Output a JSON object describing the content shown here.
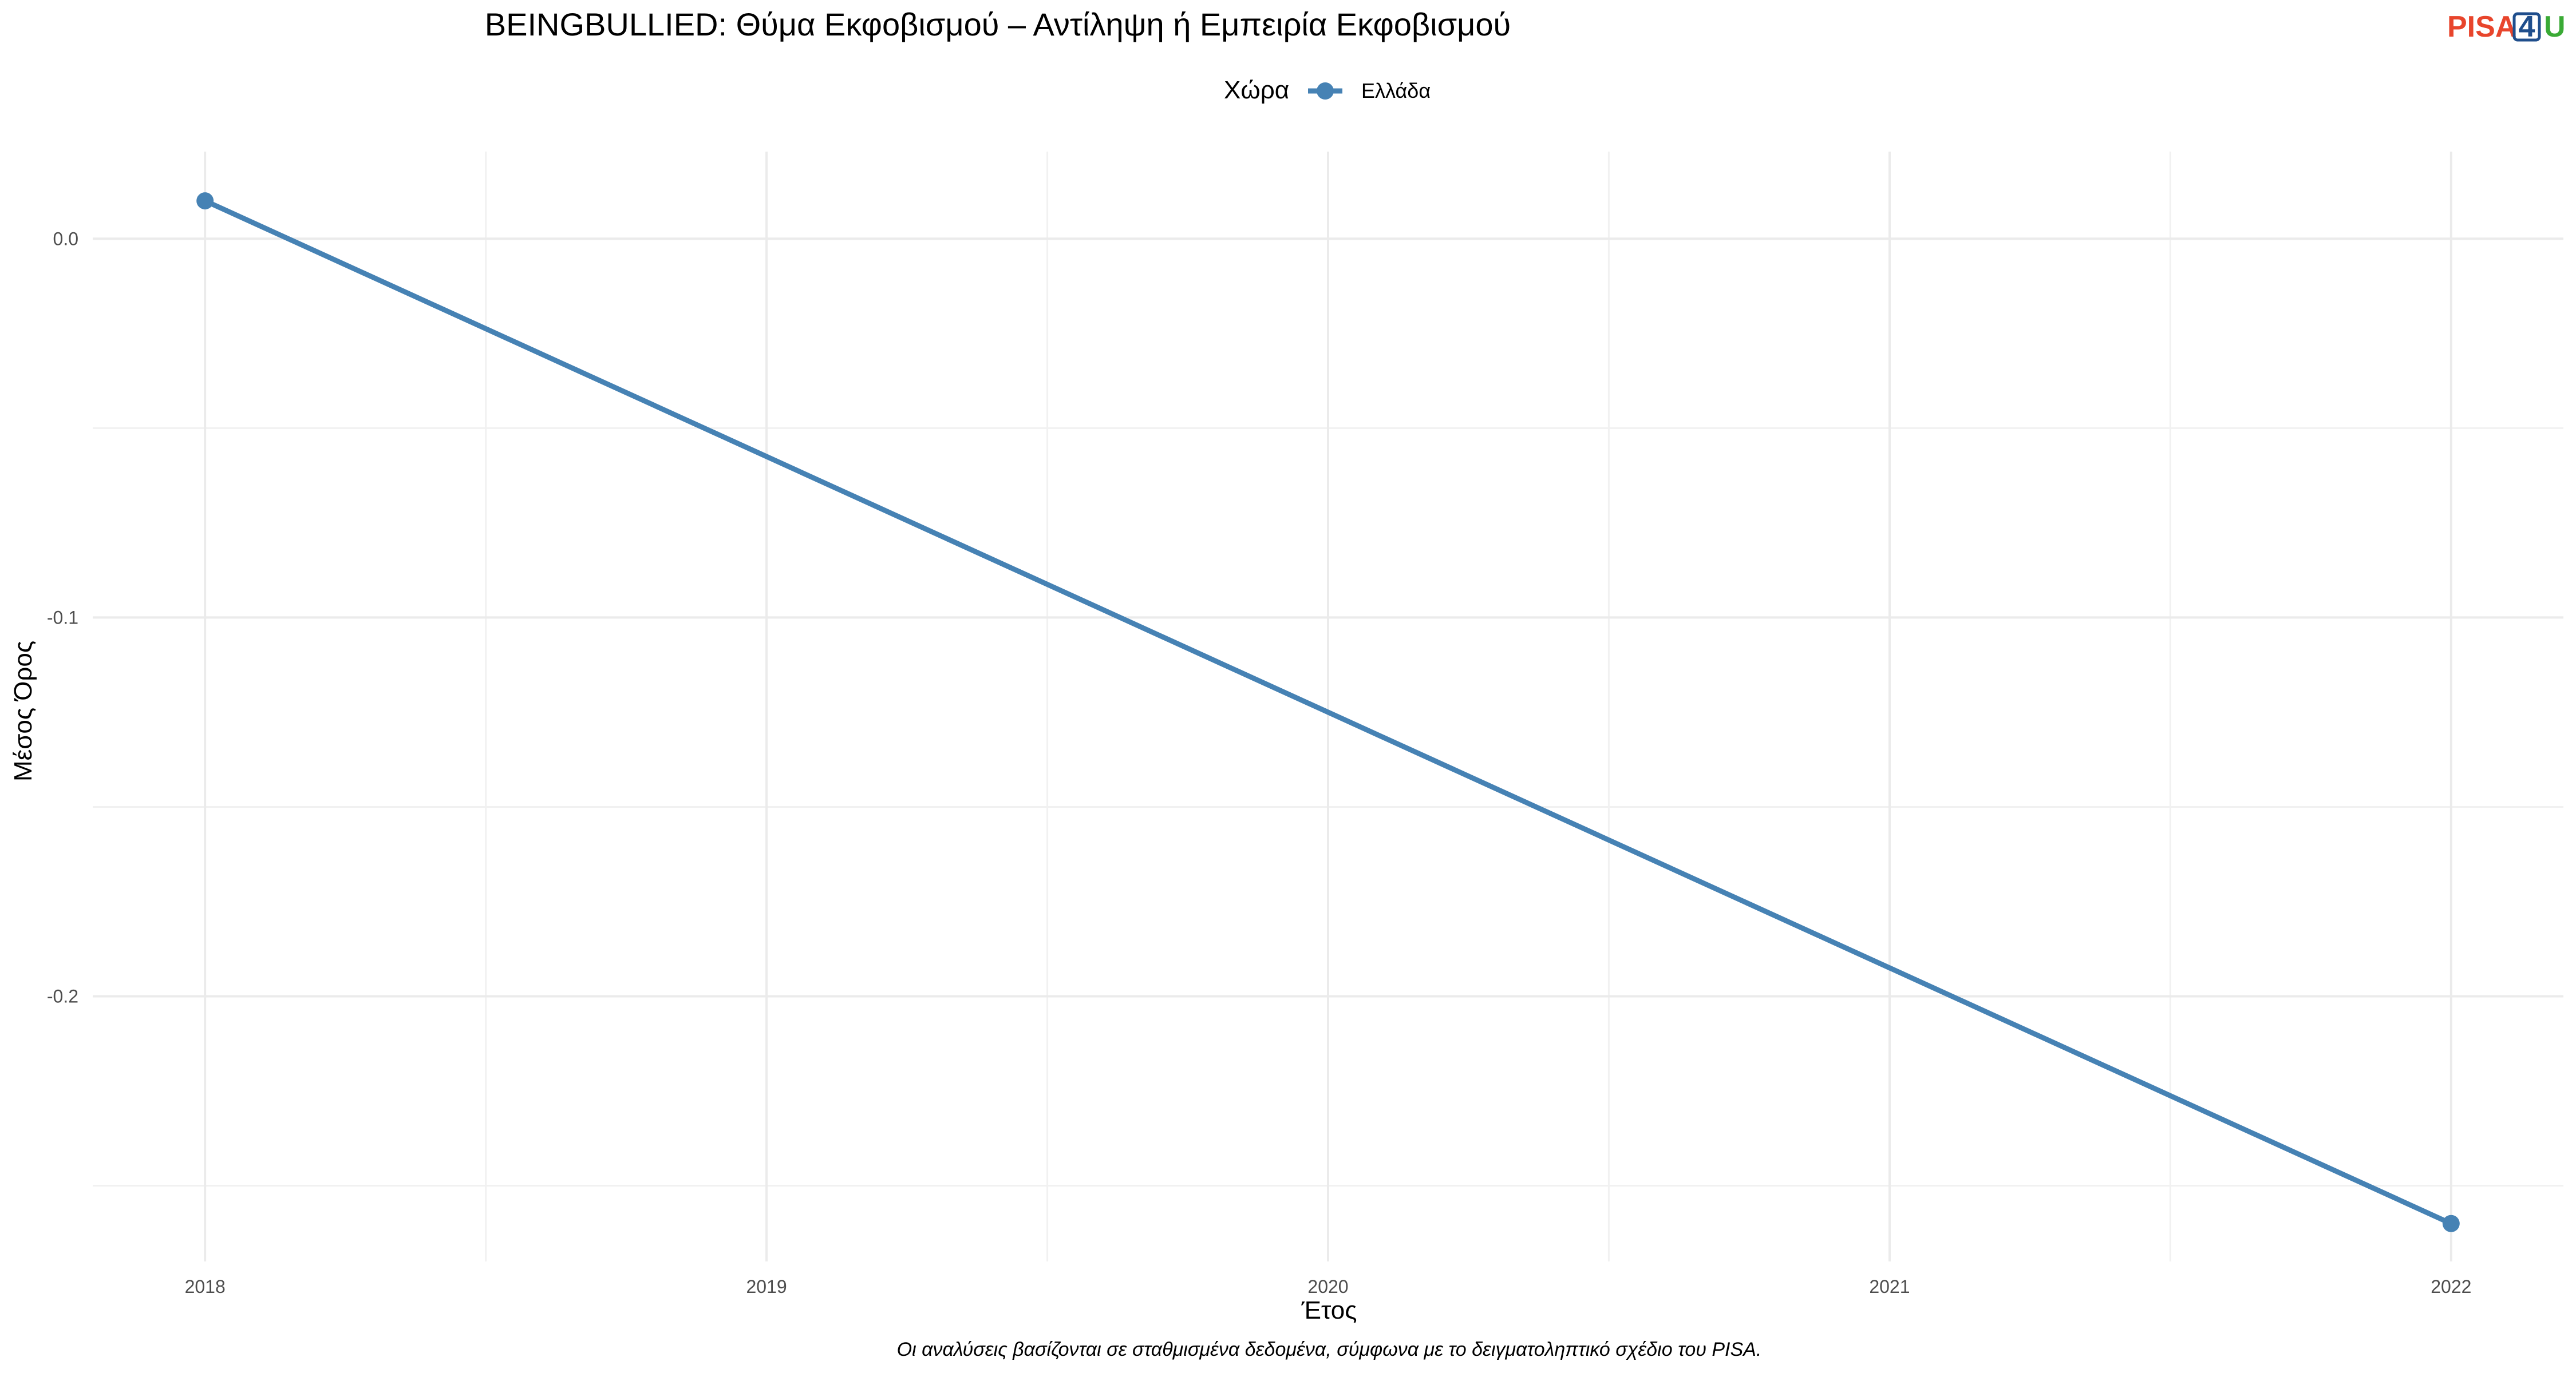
{
  "chart_data": {
    "type": "line",
    "title": "BEINGBULLIED: Θύμα Εκφοβισμού – Αντίληψη ή Εμπειρία Εκφοβισμού",
    "xlabel": "Έτος",
    "ylabel": "Μέσος Όρος",
    "caption": "Οι αναλύσεις βασίζονται σε σταθμισμένα δεδομένα, σύμφωνα με το δειγματοληπτικό σχέδιο του PISA.",
    "legend": {
      "title": "Χώρα",
      "placement": "top"
    },
    "x_ticks": [
      "2018",
      "2019",
      "2020",
      "2021",
      "2022"
    ],
    "y_ticks": [
      "0.0",
      "-0.1",
      "-0.2"
    ],
    "xlim": [
      2017.8,
      2022.2
    ],
    "ylim": [
      -0.27,
      0.023
    ],
    "grid": true,
    "series": [
      {
        "name": "Ελλάδα",
        "color": "#4682b4",
        "x": [
          2018,
          2022
        ],
        "y": [
          0.01,
          -0.26
        ]
      }
    ]
  },
  "logo": {
    "part1": "PISA",
    "part2": "4",
    "part3": "U",
    "color1": "#e8452c",
    "color2": "#1f4e8c",
    "color3": "#3aaa35"
  }
}
